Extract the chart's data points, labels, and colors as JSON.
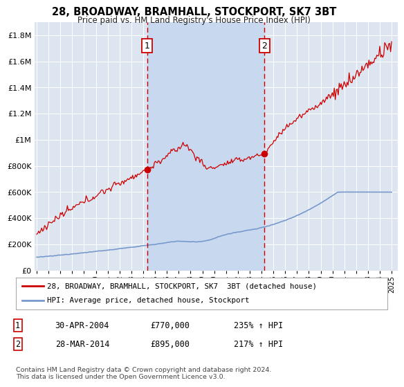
{
  "title": "28, BROADWAY, BRAMHALL, STOCKPORT, SK7 3BT",
  "subtitle": "Price paid vs. HM Land Registry's House Price Index (HPI)",
  "background_color": "#ffffff",
  "plot_bg_color": "#dde6f0",
  "grid_color": "#ffffff",
  "ylim": [
    0,
    1900000
  ],
  "yticks": [
    0,
    200000,
    400000,
    600000,
    800000,
    1000000,
    1200000,
    1400000,
    1600000,
    1800000
  ],
  "ytick_labels": [
    "£0",
    "£200K",
    "£400K",
    "£600K",
    "£800K",
    "£1M",
    "£1.2M",
    "£1.4M",
    "£1.6M",
    "£1.8M"
  ],
  "xtick_years": [
    1995,
    1996,
    1997,
    1998,
    1999,
    2000,
    2001,
    2002,
    2003,
    2004,
    2005,
    2006,
    2007,
    2008,
    2009,
    2010,
    2011,
    2012,
    2013,
    2014,
    2015,
    2016,
    2017,
    2018,
    2019,
    2020,
    2021,
    2022,
    2023,
    2024,
    2025
  ],
  "hpi_color": "#7799cc",
  "price_color": "#cc0000",
  "marker1_date": 2004.33,
  "marker1_price": 770000,
  "marker2_date": 2014.24,
  "marker2_price": 895000,
  "marker_line_color": "#cc0000",
  "marker_box_color": "#cc0000",
  "span_color": "#c8d8ee",
  "footnote": "Contains HM Land Registry data © Crown copyright and database right 2024.\nThis data is licensed under the Open Government Licence v3.0.",
  "legend_label_price": "28, BROADWAY, BRAMHALL, STOCKPORT, SK7  3BT (detached house)",
  "legend_label_hpi": "HPI: Average price, detached house, Stockport",
  "table_row1": [
    "1",
    "30-APR-2004",
    "£770,000",
    "235% ↑ HPI"
  ],
  "table_row2": [
    "2",
    "28-MAR-2014",
    "£895,000",
    "217% ↑ HPI"
  ]
}
